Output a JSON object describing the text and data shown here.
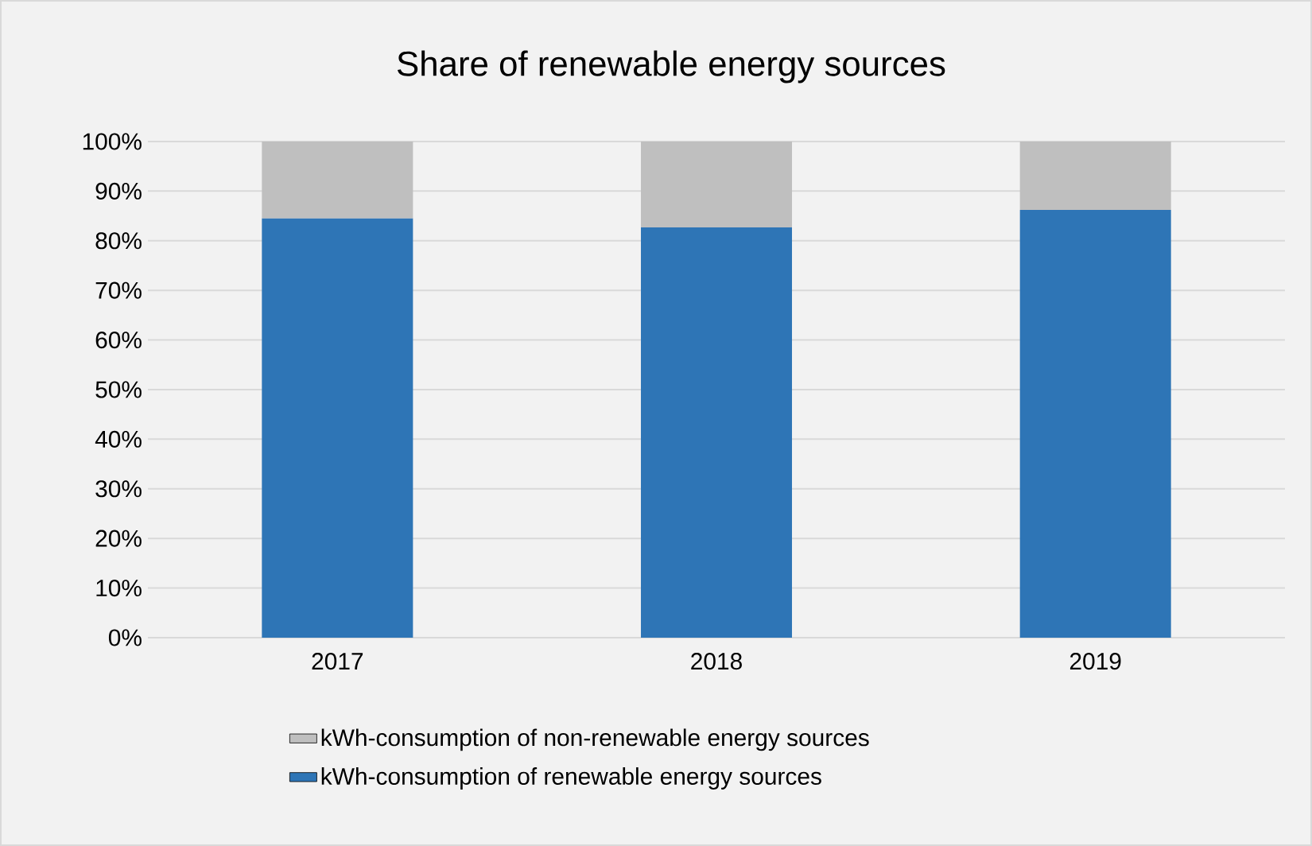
{
  "chart_data": {
    "type": "bar",
    "title": "Share of renewable energy sources",
    "categories": [
      "2017",
      "2018",
      "2019"
    ],
    "stacked": true,
    "series": [
      {
        "name": "kWh-consumption of renewable energy sources",
        "color": "#2e75b6",
        "values": [
          84.5,
          82.7,
          86.2
        ]
      },
      {
        "name": "kWh-consumption of non-renewable energy sources",
        "color": "#bfbfbf",
        "values": [
          15.5,
          17.3,
          13.8
        ]
      }
    ],
    "ylim": [
      0,
      100
    ],
    "yticks": [
      {
        "value": 0,
        "label": "0%"
      },
      {
        "value": 10,
        "label": "10%"
      },
      {
        "value": 20,
        "label": "20%"
      },
      {
        "value": 30,
        "label": "30%"
      },
      {
        "value": 40,
        "label": "40%"
      },
      {
        "value": 50,
        "label": "50%"
      },
      {
        "value": 60,
        "label": "60%"
      },
      {
        "value": 70,
        "label": "70%"
      },
      {
        "value": 80,
        "label": "80%"
      },
      {
        "value": 90,
        "label": "90%"
      },
      {
        "value": 100,
        "label": "100%"
      }
    ],
    "grid": "y",
    "legend": "bottom"
  }
}
